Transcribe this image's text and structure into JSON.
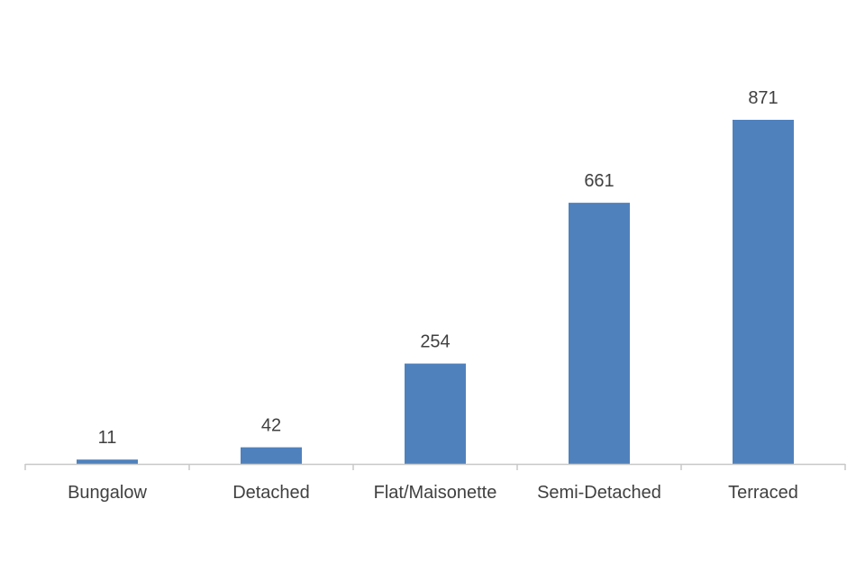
{
  "chart_data": {
    "type": "bar",
    "categories": [
      "Bungalow",
      "Detached",
      "Flat/Maisonette",
      "Semi-Detached",
      "Terraced"
    ],
    "values": [
      11,
      42,
      254,
      661,
      871
    ],
    "data_labels": [
      "11",
      "42",
      "254",
      "661",
      "871"
    ],
    "title": "",
    "xlabel": "",
    "ylabel": "",
    "ylim": [
      0,
      1000
    ],
    "grid": false,
    "legend": "none",
    "colors": {
      "bar": "#4f81bd",
      "axis": "#c8c8c8",
      "text": "#404040"
    }
  }
}
